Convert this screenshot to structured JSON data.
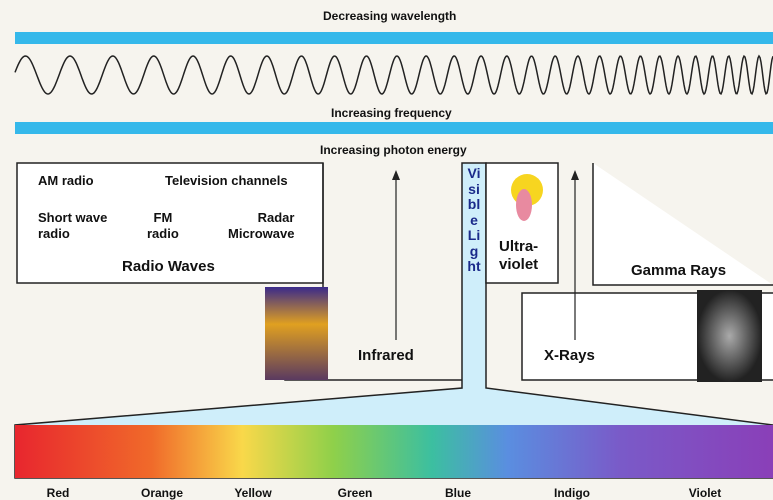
{
  "top_labels": {
    "wavelength": "Decreasing wavelength",
    "frequency": "Increasing frequency",
    "energy": "Increasing photon energy"
  },
  "radio": {
    "am": "AM radio",
    "tv": "Television channels",
    "shortwave": [
      "Short wave",
      "radio"
    ],
    "fm": [
      "FM",
      "radio"
    ],
    "radar": [
      "Radar",
      "Microwave"
    ],
    "title": "Radio Waves"
  },
  "regions": {
    "visible": "Visible Light",
    "ultraviolet": [
      "Ultra-",
      "violet"
    ],
    "gamma": "Gamma Rays",
    "infrared": "Infrared",
    "xrays": "X-Rays"
  },
  "colors": [
    "Red",
    "Orange",
    "Yellow",
    "Green",
    "Blue",
    "Indigo",
    "Violet"
  ]
}
